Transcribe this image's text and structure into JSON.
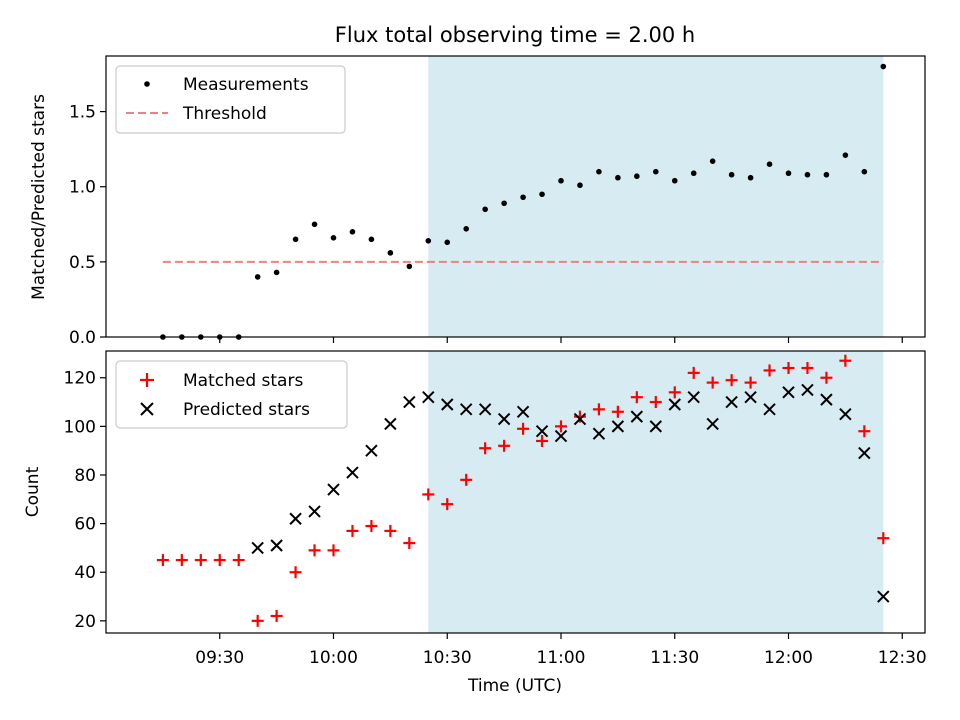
{
  "chart_data": [
    {
      "type": "scatter",
      "title": "Flux total observing time = 2.00 h",
      "ylabel": "Matched/Predicted stars",
      "ylim": [
        0,
        1.87
      ],
      "yticks": [
        "0.0",
        "0.5",
        "1.0",
        "1.5"
      ],
      "highlight_span": [
        "10:25",
        "12:25"
      ],
      "highlight_color": "#add8e6",
      "legend_position": "top-left",
      "series": [
        {
          "name": "Measurements",
          "color": "#000000",
          "marker": "dot",
          "points": [
            [
              "09:15",
              0.0
            ],
            [
              "09:20",
              0.0
            ],
            [
              "09:25",
              0.0
            ],
            [
              "09:30",
              0.0
            ],
            [
              "09:35",
              0.0
            ],
            [
              "09:40",
              0.4
            ],
            [
              "09:45",
              0.43
            ],
            [
              "09:50",
              0.65
            ],
            [
              "09:55",
              0.75
            ],
            [
              "10:00",
              0.66
            ],
            [
              "10:05",
              0.7
            ],
            [
              "10:10",
              0.65
            ],
            [
              "10:15",
              0.56
            ],
            [
              "10:20",
              0.47
            ],
            [
              "10:25",
              0.64
            ],
            [
              "10:30",
              0.63
            ],
            [
              "10:35",
              0.72
            ],
            [
              "10:40",
              0.85
            ],
            [
              "10:45",
              0.89
            ],
            [
              "10:50",
              0.93
            ],
            [
              "10:55",
              0.95
            ],
            [
              "11:00",
              1.04
            ],
            [
              "11:05",
              1.01
            ],
            [
              "11:10",
              1.1
            ],
            [
              "11:15",
              1.06
            ],
            [
              "11:20",
              1.07
            ],
            [
              "11:25",
              1.1
            ],
            [
              "11:30",
              1.04
            ],
            [
              "11:35",
              1.09
            ],
            [
              "11:40",
              1.17
            ],
            [
              "11:45",
              1.08
            ],
            [
              "11:50",
              1.06
            ],
            [
              "11:55",
              1.15
            ],
            [
              "12:00",
              1.09
            ],
            [
              "12:05",
              1.08
            ],
            [
              "12:10",
              1.08
            ],
            [
              "12:15",
              1.21
            ],
            [
              "12:20",
              1.1
            ],
            [
              "12:25",
              1.8
            ]
          ]
        },
        {
          "name": "Threshold",
          "color": "#f08080",
          "line_style": "dashed",
          "x_range": [
            "09:15",
            "12:25"
          ],
          "value": 0.5
        }
      ]
    },
    {
      "type": "scatter",
      "ylabel": "Count",
      "xlabel": "Time (UTC)",
      "ylim": [
        15,
        131
      ],
      "yticks": [
        "20",
        "40",
        "60",
        "80",
        "100",
        "120"
      ],
      "xticks": [
        "09:30",
        "10:00",
        "10:30",
        "11:00",
        "11:30",
        "12:00",
        "12:30"
      ],
      "highlight_span": [
        "10:25",
        "12:25"
      ],
      "highlight_color": "#add8e6",
      "legend_position": "top-left",
      "series": [
        {
          "name": "Matched stars",
          "color": "#ff0000",
          "marker": "plus",
          "points": [
            [
              "09:15",
              45
            ],
            [
              "09:20",
              45
            ],
            [
              "09:25",
              45
            ],
            [
              "09:30",
              45
            ],
            [
              "09:35",
              45
            ],
            [
              "09:40",
              20
            ],
            [
              "09:45",
              22
            ],
            [
              "09:50",
              40
            ],
            [
              "09:55",
              49
            ],
            [
              "10:00",
              49
            ],
            [
              "10:05",
              57
            ],
            [
              "10:10",
              59
            ],
            [
              "10:15",
              57
            ],
            [
              "10:20",
              52
            ],
            [
              "10:25",
              72
            ],
            [
              "10:30",
              68
            ],
            [
              "10:35",
              78
            ],
            [
              "10:40",
              91
            ],
            [
              "10:45",
              92
            ],
            [
              "10:50",
              99
            ],
            [
              "10:55",
              94
            ],
            [
              "11:00",
              100
            ],
            [
              "11:05",
              104
            ],
            [
              "11:10",
              107
            ],
            [
              "11:15",
              106
            ],
            [
              "11:20",
              112
            ],
            [
              "11:25",
              110
            ],
            [
              "11:30",
              114
            ],
            [
              "11:35",
              122
            ],
            [
              "11:40",
              118
            ],
            [
              "11:45",
              119
            ],
            [
              "11:50",
              118
            ],
            [
              "11:55",
              123
            ],
            [
              "12:00",
              124
            ],
            [
              "12:05",
              124
            ],
            [
              "12:10",
              120
            ],
            [
              "12:15",
              127
            ],
            [
              "12:20",
              98
            ],
            [
              "12:25",
              54
            ]
          ]
        },
        {
          "name": "Predicted stars",
          "color": "#000000",
          "marker": "cross",
          "points": [
            [
              "09:40",
              50
            ],
            [
              "09:45",
              51
            ],
            [
              "09:50",
              62
            ],
            [
              "09:55",
              65
            ],
            [
              "10:00",
              74
            ],
            [
              "10:05",
              81
            ],
            [
              "10:10",
              90
            ],
            [
              "10:15",
              101
            ],
            [
              "10:20",
              110
            ],
            [
              "10:25",
              112
            ],
            [
              "10:30",
              109
            ],
            [
              "10:35",
              107
            ],
            [
              "10:40",
              107
            ],
            [
              "10:45",
              103
            ],
            [
              "10:50",
              106
            ],
            [
              "10:55",
              98
            ],
            [
              "11:00",
              96
            ],
            [
              "11:05",
              103
            ],
            [
              "11:10",
              97
            ],
            [
              "11:15",
              100
            ],
            [
              "11:20",
              104
            ],
            [
              "11:25",
              100
            ],
            [
              "11:30",
              109
            ],
            [
              "11:35",
              112
            ],
            [
              "11:40",
              101
            ],
            [
              "11:45",
              110
            ],
            [
              "11:50",
              112
            ],
            [
              "11:55",
              107
            ],
            [
              "12:00",
              114
            ],
            [
              "12:05",
              115
            ],
            [
              "12:10",
              111
            ],
            [
              "12:15",
              105
            ],
            [
              "12:20",
              89
            ],
            [
              "12:25",
              30
            ]
          ]
        }
      ]
    }
  ]
}
